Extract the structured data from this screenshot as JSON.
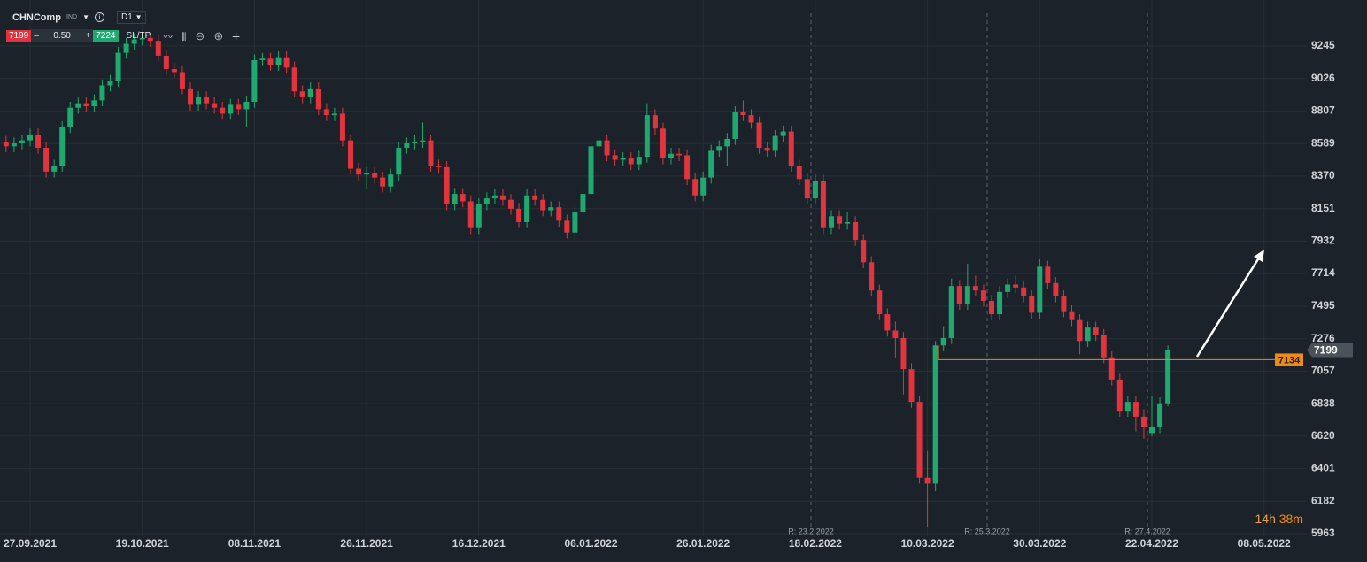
{
  "toolbar": {
    "symbol": "CHNComp",
    "symbol_type": "IND",
    "timeframe": "D1",
    "bid": "7199",
    "minus": "–",
    "lot": "0.50",
    "plus": "+",
    "ask": "7224",
    "sltp": "SL/TP"
  },
  "markers": [
    "R: 23.2.2022",
    "R: 25.3.2022",
    "R: 27.4.2022"
  ],
  "countdown": {
    "hours": "14h",
    "minutes": "38m"
  },
  "chart_data": {
    "type": "candlestick",
    "up_color": "#1fa971",
    "down_color": "#e0343f",
    "ylim": [
      5963,
      9555
    ],
    "yticks": [
      9245,
      9026,
      8807,
      8589,
      8370,
      8151,
      7932,
      7714,
      7495,
      7276,
      7057,
      6838,
      6620,
      6401,
      6182,
      5963
    ],
    "grid": true,
    "last_price": 7199,
    "order_level": 7134,
    "categories": [
      null,
      null,
      null,
      "27.09.2021",
      null,
      null,
      null,
      null,
      null,
      null,
      null,
      null,
      null,
      null,
      null,
      null,
      null,
      "19.10.2021",
      null,
      null,
      null,
      null,
      null,
      null,
      null,
      null,
      null,
      null,
      null,
      null,
      null,
      "08.11.2021",
      null,
      null,
      null,
      null,
      null,
      null,
      null,
      null,
      null,
      null,
      null,
      null,
      null,
      "26.11.2021",
      null,
      null,
      null,
      null,
      null,
      null,
      null,
      null,
      null,
      null,
      null,
      null,
      null,
      "16.12.2021",
      null,
      null,
      null,
      null,
      null,
      null,
      null,
      null,
      null,
      null,
      null,
      null,
      null,
      "06.01.2022",
      null,
      null,
      null,
      null,
      null,
      null,
      null,
      null,
      null,
      null,
      null,
      null,
      null,
      "26.01.2022",
      null,
      null,
      null,
      null,
      null,
      null,
      null,
      null,
      null,
      null,
      null,
      null,
      null,
      "18.02.2022",
      null,
      null,
      null,
      null,
      null,
      null,
      null,
      null,
      null,
      null,
      null,
      null,
      null,
      "10.03.2022",
      null,
      null,
      null,
      null,
      null,
      null,
      null,
      null,
      null,
      null,
      null,
      null,
      null,
      "30.03.2022",
      null,
      null,
      null,
      null,
      null,
      null,
      null,
      null,
      null,
      null,
      null,
      null,
      null,
      "22.04.2022",
      null,
      null,
      null,
      null,
      null,
      null,
      null,
      null,
      null,
      null,
      null,
      null,
      null,
      "08.05.2022"
    ],
    "candles": [
      [
        8600,
        8640,
        8530,
        8570
      ],
      [
        8570,
        8630,
        8530,
        8590
      ],
      [
        8590,
        8650,
        8550,
        8610
      ],
      [
        8610,
        8690,
        8570,
        8650
      ],
      [
        8650,
        8690,
        8520,
        8560
      ],
      [
        8560,
        8600,
        8360,
        8400
      ],
      [
        8400,
        8480,
        8360,
        8440
      ],
      [
        8440,
        8740,
        8400,
        8700
      ],
      [
        8700,
        8870,
        8660,
        8830
      ],
      [
        8830,
        8900,
        8790,
        8860
      ],
      [
        8860,
        8900,
        8800,
        8840
      ],
      [
        8840,
        8920,
        8800,
        8880
      ],
      [
        8880,
        9020,
        8840,
        8980
      ],
      [
        8980,
        9050,
        8940,
        9010
      ],
      [
        9010,
        9240,
        8970,
        9200
      ],
      [
        9200,
        9300,
        9160,
        9260
      ],
      [
        9260,
        9330,
        9220,
        9290
      ],
      [
        9290,
        9340,
        9250,
        9300
      ],
      [
        9300,
        9320,
        9240,
        9280
      ],
      [
        9280,
        9320,
        9140,
        9180
      ],
      [
        9180,
        9220,
        9050,
        9090
      ],
      [
        9090,
        9130,
        9030,
        9070
      ],
      [
        9070,
        9110,
        8920,
        8960
      ],
      [
        8960,
        9000,
        8810,
        8850
      ],
      [
        8850,
        8940,
        8810,
        8900
      ],
      [
        8900,
        8940,
        8820,
        8860
      ],
      [
        8860,
        8900,
        8790,
        8830
      ],
      [
        8830,
        8870,
        8750,
        8790
      ],
      [
        8790,
        8890,
        8750,
        8850
      ],
      [
        8850,
        8890,
        8780,
        8820
      ],
      [
        8820,
        8910,
        8700,
        8870
      ],
      [
        8870,
        9190,
        8830,
        9150
      ],
      [
        9150,
        9200,
        9110,
        9160
      ],
      [
        9160,
        9200,
        9080,
        9120
      ],
      [
        9120,
        9210,
        9080,
        9170
      ],
      [
        9170,
        9210,
        9060,
        9100
      ],
      [
        9100,
        9140,
        8900,
        8940
      ],
      [
        8940,
        8980,
        8860,
        8900
      ],
      [
        8900,
        9000,
        8860,
        8960
      ],
      [
        8960,
        9000,
        8780,
        8820
      ],
      [
        8820,
        8860,
        8740,
        8780
      ],
      [
        8780,
        8830,
        8740,
        8790
      ],
      [
        8790,
        8830,
        8570,
        8610
      ],
      [
        8610,
        8650,
        8380,
        8420
      ],
      [
        8420,
        8460,
        8340,
        8380
      ],
      [
        8380,
        8430,
        8280,
        8390
      ],
      [
        8390,
        8430,
        8320,
        8360
      ],
      [
        8360,
        8400,
        8260,
        8300
      ],
      [
        8300,
        8420,
        8260,
        8380
      ],
      [
        8380,
        8600,
        8340,
        8560
      ],
      [
        8560,
        8630,
        8520,
        8590
      ],
      [
        8590,
        8650,
        8550,
        8600
      ],
      [
        8600,
        8730,
        8560,
        8610
      ],
      [
        8610,
        8650,
        8400,
        8440
      ],
      [
        8440,
        8480,
        8390,
        8430
      ],
      [
        8430,
        8470,
        8140,
        8180
      ],
      [
        8180,
        8290,
        8140,
        8250
      ],
      [
        8250,
        8290,
        8160,
        8200
      ],
      [
        8200,
        8240,
        7980,
        8020
      ],
      [
        8020,
        8220,
        7980,
        8180
      ],
      [
        8180,
        8260,
        8140,
        8220
      ],
      [
        8220,
        8280,
        8180,
        8240
      ],
      [
        8240,
        8280,
        8170,
        8210
      ],
      [
        8210,
        8250,
        8110,
        8150
      ],
      [
        8150,
        8190,
        8020,
        8060
      ],
      [
        8060,
        8280,
        8020,
        8240
      ],
      [
        8240,
        8280,
        8170,
        8210
      ],
      [
        8210,
        8250,
        8100,
        8140
      ],
      [
        8140,
        8200,
        8100,
        8160
      ],
      [
        8160,
        8200,
        8030,
        8070
      ],
      [
        8070,
        8110,
        7950,
        7990
      ],
      [
        7990,
        8170,
        7950,
        8130
      ],
      [
        8130,
        8290,
        8090,
        8250
      ],
      [
        8250,
        8610,
        8210,
        8570
      ],
      [
        8570,
        8650,
        8530,
        8610
      ],
      [
        8610,
        8650,
        8470,
        8510
      ],
      [
        8510,
        8550,
        8440,
        8480
      ],
      [
        8480,
        8530,
        8440,
        8490
      ],
      [
        8490,
        8530,
        8410,
        8450
      ],
      [
        8450,
        8540,
        8410,
        8500
      ],
      [
        8500,
        8860,
        8460,
        8780
      ],
      [
        8780,
        8820,
        8650,
        8690
      ],
      [
        8690,
        8730,
        8450,
        8490
      ],
      [
        8490,
        8560,
        8450,
        8520
      ],
      [
        8520,
        8560,
        8470,
        8510
      ],
      [
        8510,
        8550,
        8310,
        8350
      ],
      [
        8350,
        8390,
        8200,
        8240
      ],
      [
        8240,
        8400,
        8200,
        8360
      ],
      [
        8360,
        8580,
        8320,
        8540
      ],
      [
        8540,
        8610,
        8500,
        8570
      ],
      [
        8570,
        8660,
        8440,
        8620
      ],
      [
        8620,
        8840,
        8580,
        8800
      ],
      [
        8800,
        8880,
        8740,
        8780
      ],
      [
        8780,
        8820,
        8690,
        8730
      ],
      [
        8730,
        8770,
        8520,
        8560
      ],
      [
        8560,
        8600,
        8500,
        8540
      ],
      [
        8540,
        8680,
        8500,
        8640
      ],
      [
        8640,
        8710,
        8600,
        8670
      ],
      [
        8670,
        8710,
        8400,
        8440
      ],
      [
        8440,
        8480,
        8310,
        8350
      ],
      [
        8350,
        8390,
        8180,
        8220
      ],
      [
        8220,
        8380,
        8180,
        8340
      ],
      [
        8340,
        8380,
        7980,
        8020
      ],
      [
        8020,
        8140,
        7980,
        8100
      ],
      [
        8100,
        8140,
        8010,
        8050
      ],
      [
        8050,
        8130,
        8010,
        8060
      ],
      [
        8060,
        8100,
        7900,
        7940
      ],
      [
        7940,
        7980,
        7750,
        7790
      ],
      [
        7790,
        7830,
        7560,
        7600
      ],
      [
        7600,
        7640,
        7400,
        7440
      ],
      [
        7440,
        7480,
        7290,
        7330
      ],
      [
        7330,
        7390,
        7150,
        7280
      ],
      [
        7280,
        7320,
        6900,
        7070
      ],
      [
        7070,
        7110,
        6810,
        6850
      ],
      [
        6850,
        6890,
        6300,
        6340
      ],
      [
        6340,
        6520,
        6010,
        6300
      ],
      [
        6300,
        7260,
        6250,
        7230
      ],
      [
        7230,
        7360,
        7190,
        7280
      ],
      [
        7280,
        7680,
        7240,
        7630
      ],
      [
        7630,
        7670,
        7470,
        7510
      ],
      [
        7510,
        7780,
        7470,
        7630
      ],
      [
        7630,
        7700,
        7560,
        7600
      ],
      [
        7600,
        7640,
        7490,
        7530
      ],
      [
        7530,
        7570,
        7400,
        7440
      ],
      [
        7440,
        7630,
        7400,
        7590
      ],
      [
        7590,
        7680,
        7550,
        7640
      ],
      [
        7640,
        7700,
        7580,
        7620
      ],
      [
        7620,
        7660,
        7520,
        7560
      ],
      [
        7560,
        7600,
        7410,
        7450
      ],
      [
        7450,
        7810,
        7410,
        7760
      ],
      [
        7760,
        7800,
        7610,
        7650
      ],
      [
        7650,
        7690,
        7520,
        7560
      ],
      [
        7560,
        7600,
        7420,
        7460
      ],
      [
        7460,
        7500,
        7360,
        7400
      ],
      [
        7400,
        7440,
        7170,
        7260
      ],
      [
        7260,
        7390,
        7220,
        7350
      ],
      [
        7350,
        7390,
        7260,
        7300
      ],
      [
        7300,
        7340,
        7110,
        7150
      ],
      [
        7150,
        7190,
        6960,
        7000
      ],
      [
        7000,
        7040,
        6750,
        6790
      ],
      [
        6790,
        6890,
        6750,
        6850
      ],
      [
        6850,
        6890,
        6650,
        6750
      ],
      [
        6750,
        6800,
        6600,
        6680
      ],
      [
        6640,
        6890,
        6620,
        6680
      ],
      [
        6680,
        6880,
        6640,
        6840
      ],
      [
        6840,
        7230,
        6820,
        7199
      ],
      null,
      null,
      null,
      null,
      null,
      null,
      null,
      null,
      null,
      null,
      null,
      null
    ]
  }
}
